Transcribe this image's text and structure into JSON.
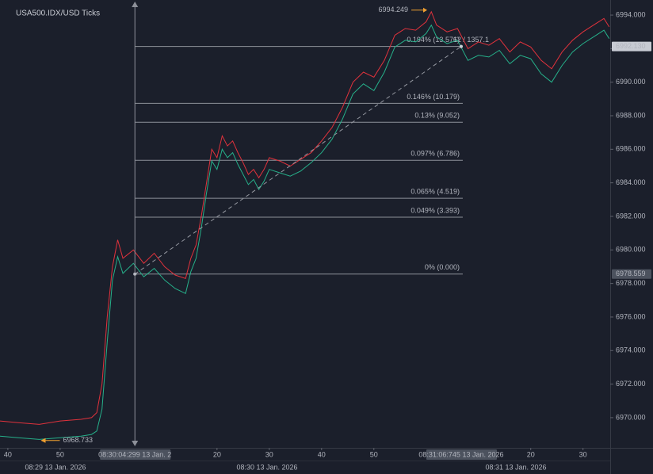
{
  "chart_data": {
    "type": "line",
    "title": "USA500.IDX/USD Ticks",
    "x": [
      38.5,
      42,
      46,
      50,
      54,
      56,
      57,
      58,
      59,
      60,
      61,
      62,
      64,
      66,
      68,
      70,
      72,
      74,
      75,
      76,
      77,
      78,
      79,
      80,
      81,
      82,
      83,
      84,
      85,
      86,
      87,
      88,
      89,
      90,
      92,
      94,
      96,
      98,
      100,
      102,
      104,
      106,
      108,
      110,
      112,
      114,
      116,
      118,
      120,
      121,
      122,
      124,
      126,
      128,
      130,
      132,
      134,
      136,
      138,
      140,
      142,
      144,
      146,
      148,
      150,
      152,
      154,
      155
    ],
    "series": [
      {
        "color": "#e0323c",
        "values": [
          6969.8,
          6969.7,
          6969.6,
          6969.8,
          6969.9,
          6970.0,
          6970.3,
          6972,
          6976,
          6979,
          6980.6,
          6979.5,
          6980,
          6979.2,
          6979.8,
          6979,
          6978.5,
          6978.3,
          6979.5,
          6980.3,
          6982,
          6984,
          6986,
          6985.5,
          6986.8,
          6986.2,
          6986.5,
          6985.8,
          6985.2,
          6984.5,
          6984.8,
          6984.3,
          6984.8,
          6985.5,
          6985.3,
          6985.0,
          6985.4,
          6985.8,
          6986.5,
          6987.3,
          6988.5,
          6990.0,
          6990.6,
          6990.3,
          6991.3,
          6992.8,
          6993.2,
          6993.1,
          6993.6,
          6994.2,
          6993.4,
          6993.0,
          6993.2,
          6992.0,
          6992.4,
          6992.2,
          6992.6,
          6991.8,
          6992.4,
          6992.1,
          6991.3,
          6990.8,
          6991.8,
          6992.5,
          6993.0,
          6993.4,
          6993.8,
          6993.3
        ]
      },
      {
        "color": "#26b08a",
        "values": [
          6968.9,
          6968.8,
          6968.7,
          6968.8,
          6968.9,
          6969.0,
          6969.2,
          6970.5,
          6974.5,
          6978.2,
          6979.6,
          6978.6,
          6979.2,
          6978.4,
          6978.9,
          6978.2,
          6977.7,
          6977.4,
          6978.7,
          6979.5,
          6981.3,
          6983.4,
          6985.3,
          6984.8,
          6986.0,
          6985.5,
          6985.8,
          6985.1,
          6984.5,
          6983.9,
          6984.2,
          6983.6,
          6984.1,
          6984.8,
          6984.6,
          6984.4,
          6984.7,
          6985.2,
          6985.8,
          6986.6,
          6987.8,
          6989.3,
          6989.9,
          6989.5,
          6990.6,
          6992.1,
          6992.5,
          6992.4,
          6992.9,
          6993.4,
          6992.7,
          6992.3,
          6992.5,
          6991.3,
          6991.6,
          6991.5,
          6991.9,
          6991.1,
          6991.6,
          6991.4,
          6990.5,
          6990.0,
          6991.0,
          6991.8,
          6992.3,
          6992.7,
          6993.1,
          6992.6
        ]
      }
    ],
    "xlim": [
      38.5,
      155.2
    ],
    "xticks": [
      40,
      50,
      {
        "value": 80,
        "label": "20"
      },
      {
        "value": 90,
        "label": "30"
      },
      {
        "value": 100,
        "label": "40"
      },
      {
        "value": 110,
        "label": "50"
      },
      {
        "value": 140,
        "label": "20"
      },
      {
        "value": 150,
        "label": "30"
      }
    ],
    "ylim": [
      6968.2,
      6994.9
    ],
    "yticks": [
      {
        "value": 6970,
        "label": "6970.000"
      },
      {
        "value": 6972,
        "label": "6972.000"
      },
      {
        "value": 6974,
        "label": "6974.000"
      },
      {
        "value": 6976,
        "label": "6976.000"
      },
      {
        "value": 6978,
        "label": "6978.000"
      },
      {
        "value": 6980,
        "label": "6980.000"
      },
      {
        "value": 6982,
        "label": "6982.000"
      },
      {
        "value": 6984,
        "label": "6984.000"
      },
      {
        "value": 6986,
        "label": "6986.000"
      },
      {
        "value": 6988,
        "label": "6988.000"
      },
      {
        "value": 6990,
        "label": "6990.000"
      },
      {
        "value": 6992,
        "label": "6992.000"
      },
      {
        "value": 6994,
        "label": "6994.000"
      }
    ],
    "date_labels": [
      "08:29 13 Jan. 2026",
      "08:30 13 Jan. 2026",
      "08:31 13 Jan. 2026"
    ],
    "start": {
      "x": 64.3,
      "label": "08:30:04:299 13 Jan. 2"
    },
    "end": {
      "x": 126.7,
      "label": "08:31:06:745 13 Jan. 2026"
    },
    "price_labels": [
      {
        "value": 6992.13,
        "label": "6992.130"
      },
      {
        "value": 6978.559,
        "label": "6978.559"
      }
    ],
    "high": {
      "x": 120.5,
      "value": 6994.249,
      "label": "6994.249"
    },
    "low": {
      "x": 46,
      "value": 6968.733,
      "label": "6968.733"
    },
    "levels": [
      {
        "value": 6978.559,
        "label": "0% (0.000)"
      },
      {
        "value": 6981.952,
        "label": "0.049% (3.393)"
      },
      {
        "value": 6983.078,
        "label": "0.065% (4.519)"
      },
      {
        "value": 6985.345,
        "label": "0.097% (6.786)"
      },
      {
        "value": 6987.611,
        "label": "0.13% (9.052)"
      },
      {
        "value": 6988.738,
        "label": "0.146% (10.179)"
      },
      {
        "value": 6992.13,
        "label": "0.194% (13.571)"
      }
    ],
    "measure": "62 / 1357.1"
  }
}
